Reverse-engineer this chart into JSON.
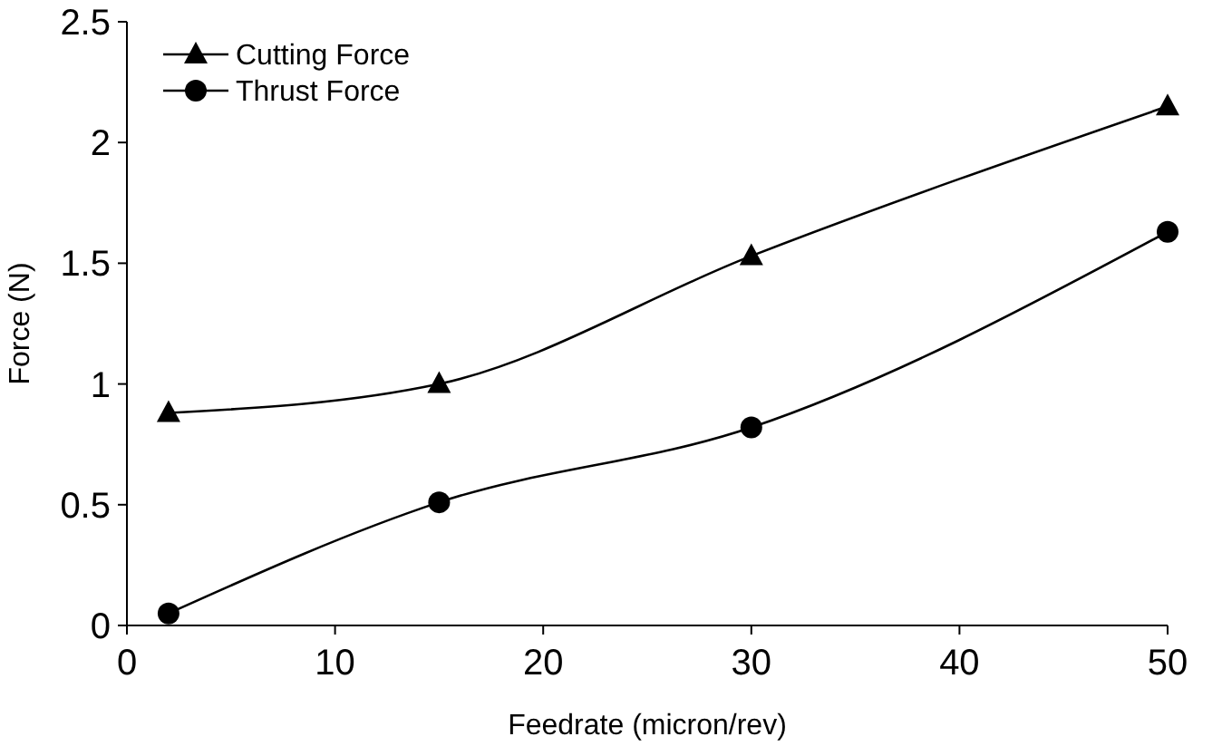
{
  "chart_data": {
    "type": "line",
    "xlabel": "Feedrate (micron/rev)",
    "ylabel": "Force (N)",
    "x": [
      2,
      15,
      30,
      50
    ],
    "series": [
      {
        "name": "Cutting Force",
        "color": "#000000",
        "marker": "triangle",
        "values": [
          0.88,
          1.0,
          1.53,
          2.15
        ]
      },
      {
        "name": "Thrust Force",
        "color": "#000000",
        "marker": "circle",
        "values": [
          0.05,
          0.51,
          0.82,
          1.63
        ]
      }
    ],
    "xlim": [
      0,
      50
    ],
    "xticks": [
      0,
      10,
      20,
      30,
      40,
      50
    ],
    "ylim": [
      0,
      2.5
    ],
    "yticks": [
      0,
      0.5,
      1,
      1.5,
      2,
      2.5
    ],
    "grid": false,
    "legend": "top left",
    "line_style": "solid"
  }
}
